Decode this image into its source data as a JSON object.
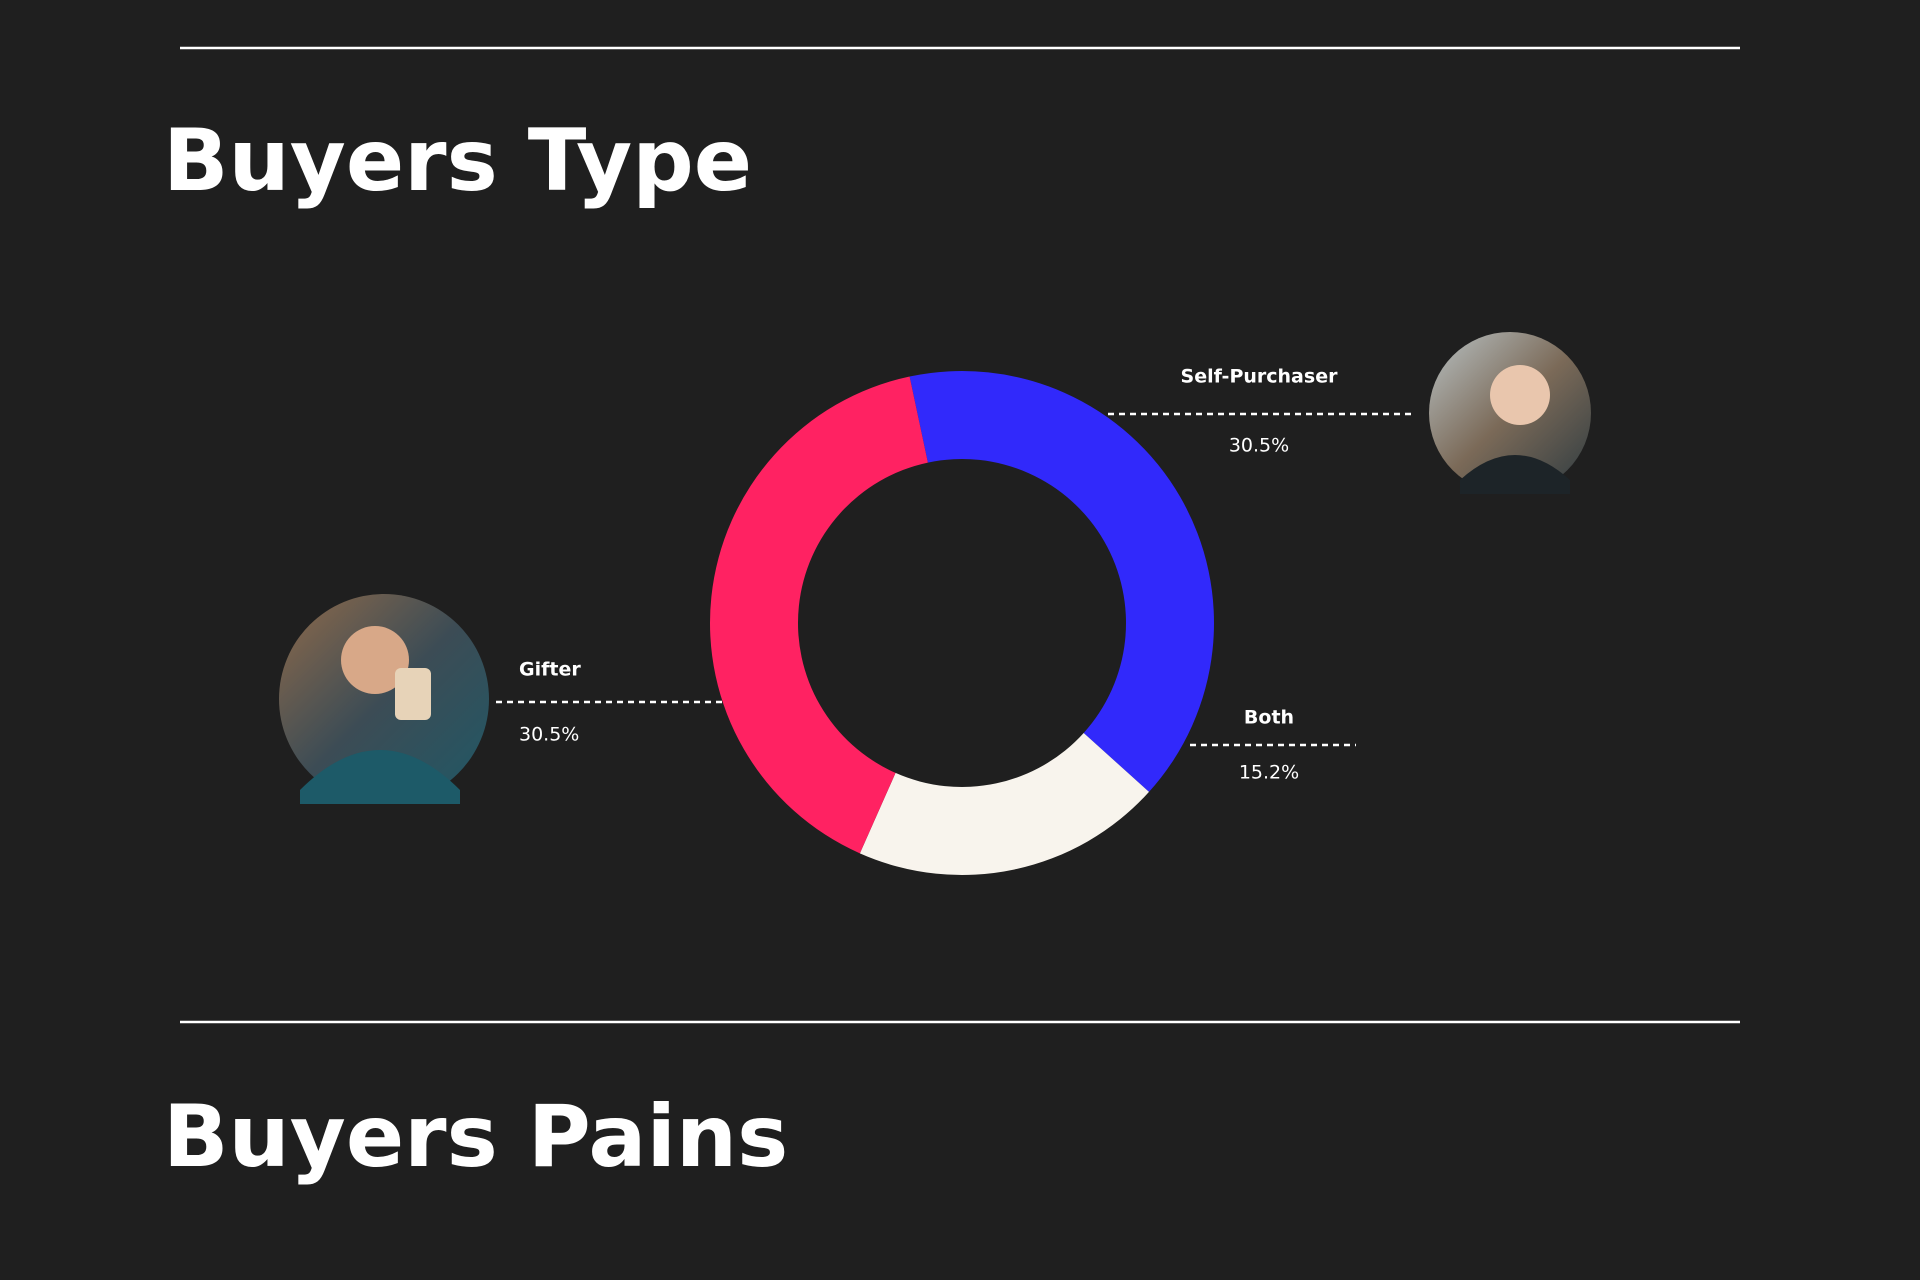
{
  "header": {
    "title": "Buyers Type"
  },
  "chart_data": {
    "type": "donut",
    "categories": [
      "Self-Purchaser",
      "Both",
      "Gifter"
    ],
    "values": [
      30.5,
      15.2,
      30.5
    ],
    "value_labels": [
      "30.5%",
      "15.2%",
      "30.5%"
    ],
    "colors": [
      "#3129fb",
      "#f8f4ed",
      "#ff2262"
    ]
  },
  "footer": {
    "title": "Buyers Pains"
  }
}
